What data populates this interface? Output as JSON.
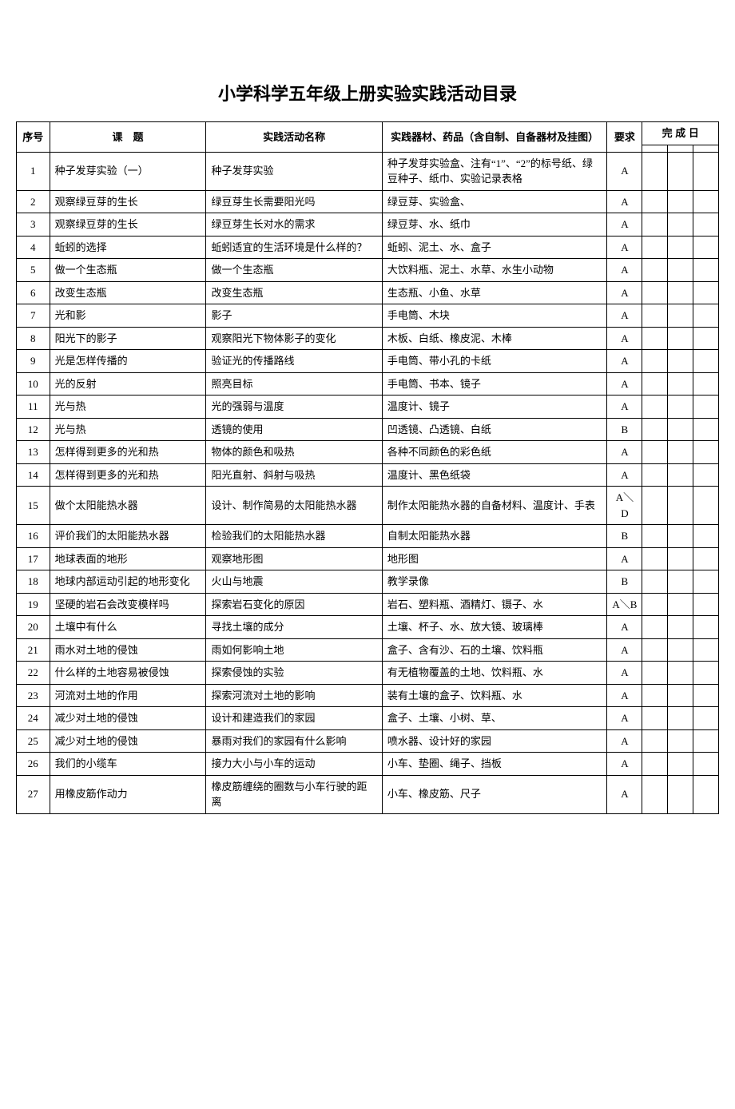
{
  "title": "小学科学五年级上册实验实践活动目录",
  "headers": {
    "index": "序号",
    "topic": "课　题",
    "activity": "实践活动名称",
    "materials": "实践器材、药品（含自制、自备器材及挂图）",
    "requirement": "要求",
    "completion": "完 成 日"
  },
  "rows": [
    {
      "idx": "1",
      "topic": "种子发芽实验（一）",
      "activity": "种子发芽实验",
      "materials": "种子发芽实验盒、注有“1”、“2”的标号纸、绿豆种子、纸巾、实验记录表格",
      "req": "A"
    },
    {
      "idx": "2",
      "topic": "观察绿豆芽的生长",
      "activity": "绿豆芽生长需要阳光吗",
      "materials": "绿豆芽、实验盒、",
      "req": "A"
    },
    {
      "idx": "3",
      "topic": "观察绿豆芽的生长",
      "activity": "绿豆芽生长对水的需求",
      "materials": "绿豆芽、水、纸巾",
      "req": "A"
    },
    {
      "idx": "4",
      "topic": "蚯蚓的选择",
      "activity": "蚯蚓适宜的生活环境是什么样的？",
      "materials": "蚯蚓、泥土、水、盒子",
      "req": "A"
    },
    {
      "idx": "5",
      "topic": "做一个生态瓶",
      "activity": "做一个生态瓶",
      "materials": "大饮料瓶、泥土、水草、水生小动物",
      "req": "A"
    },
    {
      "idx": "6",
      "topic": "改变生态瓶",
      "activity": "改变生态瓶",
      "materials": "生态瓶、小鱼、水草",
      "req": "A"
    },
    {
      "idx": "7",
      "topic": "光和影",
      "activity": "影子",
      "materials": "手电筒、木块",
      "req": "A"
    },
    {
      "idx": "8",
      "topic": "阳光下的影子",
      "activity": "观察阳光下物体影子的变化",
      "materials": "木板、白纸、橡皮泥、木棒",
      "req": "A"
    },
    {
      "idx": "9",
      "topic": "光是怎样传播的",
      "activity": "验证光的传播路线",
      "materials": "手电筒、带小孔的卡纸",
      "req": "A"
    },
    {
      "idx": "10",
      "topic": "光的反射",
      "activity": "照亮目标",
      "materials": "手电筒、书本、镜子",
      "req": "A"
    },
    {
      "idx": "11",
      "topic": "光与热",
      "activity": "光的强弱与温度",
      "materials": "温度计、镜子",
      "req": "A"
    },
    {
      "idx": "12",
      "topic": "光与热",
      "activity": "透镜的使用",
      "materials": "凹透镜、凸透镜、白纸",
      "req": "B"
    },
    {
      "idx": "13",
      "topic": "怎样得到更多的光和热",
      "activity": "物体的颜色和吸热",
      "materials": "各种不同颜色的彩色纸",
      "req": "A"
    },
    {
      "idx": "14",
      "topic": "怎样得到更多的光和热",
      "activity": "阳光直射、斜射与吸热",
      "materials": "温度计、黑色纸袋",
      "req": "A"
    },
    {
      "idx": "15",
      "topic": "做个太阳能热水器",
      "activity": "设计、制作简易的太阳能热水器",
      "materials": "制作太阳能热水器的自备材料、温度计、手表",
      "req": "A＼D"
    },
    {
      "idx": "16",
      "topic": "评价我们的太阳能热水器",
      "activity": "检验我们的太阳能热水器",
      "materials": "自制太阳能热水器",
      "req": "B"
    },
    {
      "idx": "17",
      "topic": "地球表面的地形",
      "activity": "观察地形图",
      "materials": "地形图",
      "req": "A"
    },
    {
      "idx": "18",
      "topic": "地球内部运动引起的地形变化",
      "activity": "火山与地震",
      "materials": "教学录像",
      "req": "B"
    },
    {
      "idx": "19",
      "topic": "坚硬的岩石会改变模样吗",
      "activity": "探索岩石变化的原因",
      "materials": "岩石、塑料瓶、酒精灯、镊子、水",
      "req": "A＼B"
    },
    {
      "idx": "20",
      "topic": "土壤中有什么",
      "activity": "寻找土壤的成分",
      "materials": "土壤、杯子、水、放大镜、玻璃棒",
      "req": "A"
    },
    {
      "idx": "21",
      "topic": "雨水对土地的侵蚀",
      "activity": "雨如何影响土地",
      "materials": "盒子、含有沙、石的土壤、饮料瓶",
      "req": "A"
    },
    {
      "idx": "22",
      "topic": "什么样的土地容易被侵蚀",
      "activity": "探索侵蚀的实验",
      "materials": "有无植物覆盖的土地、饮料瓶、水",
      "req": "A"
    },
    {
      "idx": "23",
      "topic": "河流对土地的作用",
      "activity": "探索河流对土地的影响",
      "materials": "装有土壤的盒子、饮料瓶、水",
      "req": "A"
    },
    {
      "idx": "24",
      "topic": "减少对土地的侵蚀",
      "activity": "设计和建造我们的家园",
      "materials": "盒子、土壤、小树、草、",
      "req": "A"
    },
    {
      "idx": "25",
      "topic": "减少对土地的侵蚀",
      "activity": "暴雨对我们的家园有什么影响",
      "materials": "喷水器、设计好的家园",
      "req": "A"
    },
    {
      "idx": "26",
      "topic": "我们的小缆车",
      "activity": "接力大小与小车的运动",
      "materials": "小车、垫圈、绳子、挡板",
      "req": "A"
    },
    {
      "idx": "27",
      "topic": "用橡皮筋作动力",
      "activity": "橡皮筋缠绕的圈数与小车行驶的距离",
      "materials": "小车、橡皮筋、尺子",
      "req": "A"
    }
  ]
}
